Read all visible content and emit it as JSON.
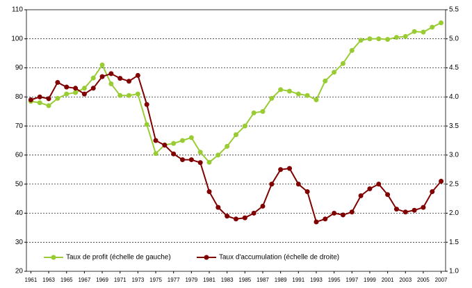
{
  "chart_data": {
    "type": "line",
    "x": [
      1961,
      1962,
      1963,
      1964,
      1965,
      1966,
      1967,
      1968,
      1969,
      1970,
      1971,
      1972,
      1973,
      1974,
      1975,
      1976,
      1977,
      1978,
      1979,
      1980,
      1981,
      1982,
      1983,
      1984,
      1985,
      1986,
      1987,
      1988,
      1989,
      1990,
      1991,
      1992,
      1993,
      1994,
      1995,
      1996,
      1997,
      1998,
      1999,
      2000,
      2001,
      2002,
      2003,
      2004,
      2005,
      2006,
      2007
    ],
    "xticks": [
      1961,
      1963,
      1965,
      1967,
      1969,
      1971,
      1973,
      1975,
      1977,
      1979,
      1981,
      1983,
      1985,
      1987,
      1989,
      1991,
      1993,
      1995,
      1997,
      1999,
      2001,
      2003,
      2005,
      2007
    ],
    "series": [
      {
        "name": "Taux de profit (échelle de gauche)",
        "color": "#99cc33",
        "values": [
          78.5,
          78,
          77,
          79.5,
          81,
          81.5,
          83,
          86.5,
          91,
          84.5,
          80.5,
          80.5,
          81,
          70.5,
          60.5,
          63.5,
          64,
          65,
          66,
          61,
          57.5,
          60,
          63,
          67,
          70,
          74.5,
          75,
          79.5,
          82.5,
          82,
          81,
          80.5,
          79,
          85.5,
          88.5,
          91.5,
          96,
          99.5,
          100,
          100,
          99.8,
          100.5,
          100.8,
          102.5,
          102.3,
          104,
          105.5
        ]
      },
      {
        "name": "Taux d'accumulation (échelle de droite)",
        "color": "#800000",
        "axis": "y2",
        "values": [
          3.95,
          4.0,
          3.97,
          4.25,
          4.17,
          4.15,
          4.05,
          4.15,
          4.35,
          4.4,
          4.32,
          4.27,
          4.37,
          3.87,
          3.25,
          3.17,
          3.02,
          2.92,
          2.92,
          2.87,
          2.37,
          2.1,
          1.95,
          1.9,
          1.92,
          2.0,
          2.12,
          2.5,
          2.75,
          2.77,
          2.5,
          2.37,
          1.85,
          1.9,
          2.0,
          1.97,
          2.02,
          2.3,
          2.42,
          2.5,
          2.32,
          2.07,
          2.02,
          2.05,
          2.1,
          2.37,
          2.55
        ]
      }
    ],
    "ylim": [
      20,
      110
    ],
    "yticks": [
      20,
      30,
      40,
      50,
      60,
      70,
      80,
      90,
      100,
      110
    ],
    "y2lim": [
      1,
      5.5
    ],
    "y2ticks": [
      {
        "value": 1,
        "label": "1.0"
      },
      1.5,
      {
        "value": 2,
        "label": "2.0"
      },
      2.5,
      {
        "value": 3,
        "label": "3.0"
      },
      3.5,
      {
        "value": 4,
        "label": "4.0"
      },
      4.5,
      {
        "value": 5,
        "label": "5.0"
      },
      5.5
    ],
    "grid": true,
    "legend": "bottom-left"
  }
}
